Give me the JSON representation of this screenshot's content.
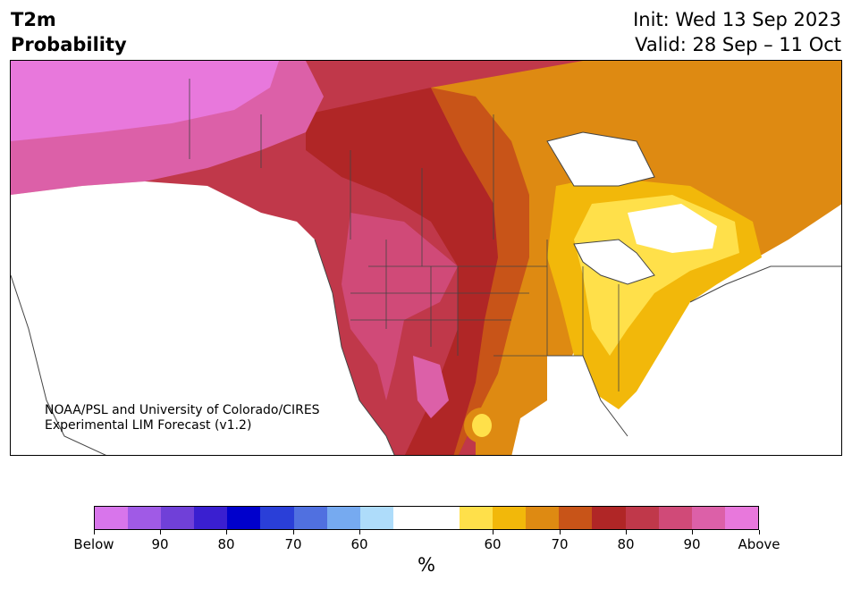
{
  "header": {
    "title_line1": "T2m",
    "title_line2": "Probability",
    "init_label": "Init: Wed 13 Sep 2023",
    "valid_label": "Valid: 28 Sep – 11 Oct"
  },
  "map": {
    "credit_line1": "NOAA/PSL and University of Colorado/CIRES",
    "credit_line2": "Experimental LIM Forecast (v1.2)"
  },
  "colorbar": {
    "colors": [
      "#d875eb",
      "#a05ae6",
      "#7040d8",
      "#3a1fd0",
      "#0000cc",
      "#2a3fd8",
      "#5070e0",
      "#76aaf0",
      "#aedcfa",
      "#ffffff",
      "#ffffff",
      "#ffe04a",
      "#f2b80a",
      "#de8a12",
      "#c85418",
      "#b02626",
      "#c0384a",
      "#d04a78",
      "#dc60a8",
      "#e878dc"
    ],
    "tick_labels": [
      "Below",
      "90",
      "80",
      "70",
      "60",
      "60",
      "70",
      "80",
      "90",
      "Above"
    ],
    "unit_label": "%"
  }
}
